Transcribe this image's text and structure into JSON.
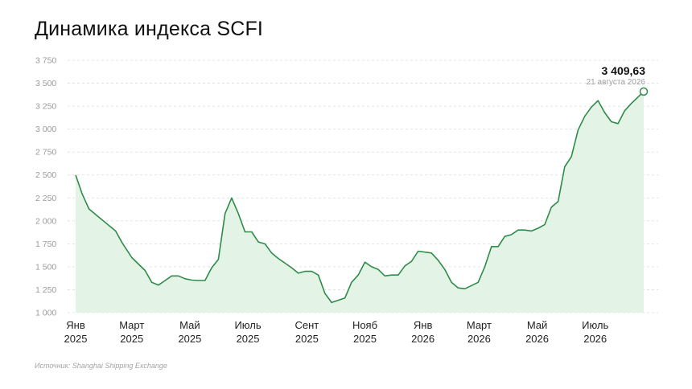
{
  "chart_data": {
    "type": "area",
    "title": "Динамика индекса SCFI",
    "source": "Источник: Shanghai Shipping Exchange",
    "xlabel": "",
    "ylabel": "",
    "ylim": [
      1000,
      3750
    ],
    "yticks": [
      1000,
      1250,
      1500,
      1750,
      2000,
      2250,
      2500,
      2750,
      3000,
      3250,
      3500,
      3750
    ],
    "ytick_labels": [
      "1 000",
      "1 250",
      "1 500",
      "1 750",
      "2 000",
      "2 250",
      "2 500",
      "2 750",
      "3 000",
      "3 250",
      "3 500",
      "3 750"
    ],
    "grid": true,
    "line_color": "#2e8b4a",
    "fill_color": "#e3f4e6",
    "x_ticks": [
      {
        "date": "2025-01-01",
        "line1": "Янв",
        "line2": "2025"
      },
      {
        "date": "2025-03-01",
        "line1": "Март",
        "line2": "2025"
      },
      {
        "date": "2025-05-01",
        "line1": "Май",
        "line2": "2025"
      },
      {
        "date": "2025-07-01",
        "line1": "Июль",
        "line2": "2025"
      },
      {
        "date": "2025-09-01",
        "line1": "Сент",
        "line2": "2025"
      },
      {
        "date": "2025-11-01",
        "line1": "Нояб",
        "line2": "2025"
      },
      {
        "date": "2026-01-01",
        "line1": "Янв",
        "line2": "2026"
      },
      {
        "date": "2026-03-01",
        "line1": "Март",
        "line2": "2026"
      },
      {
        "date": "2026-05-01",
        "line1": "Май",
        "line2": "2026"
      },
      {
        "date": "2026-07-01",
        "line1": "Июль",
        "line2": "2026"
      }
    ],
    "last_point": {
      "label": "3 409,63",
      "date_label": "21 августа 2026"
    },
    "series": [
      {
        "x": [
          "2025-01-01",
          "2025-01-08",
          "2025-01-15",
          "2025-01-29",
          "2025-02-12",
          "2025-02-19",
          "2025-03-01",
          "2025-03-15",
          "2025-03-22",
          "2025-03-29",
          "2025-04-05",
          "2025-04-12",
          "2025-04-19",
          "2025-04-26",
          "2025-05-03",
          "2025-05-10",
          "2025-05-17",
          "2025-05-24",
          "2025-05-31",
          "2025-06-07",
          "2025-06-14",
          "2025-06-21",
          "2025-06-28",
          "2025-07-05",
          "2025-07-12",
          "2025-07-19",
          "2025-07-26",
          "2025-08-02",
          "2025-08-16",
          "2025-08-23",
          "2025-08-30",
          "2025-09-06",
          "2025-09-13",
          "2025-09-20",
          "2025-09-27",
          "2025-10-11",
          "2025-10-18",
          "2025-10-25",
          "2025-11-01",
          "2025-11-08",
          "2025-11-15",
          "2025-11-22",
          "2025-11-29",
          "2025-12-06",
          "2025-12-13",
          "2025-12-20",
          "2025-12-27",
          "2026-01-10",
          "2026-01-17",
          "2026-01-24",
          "2026-01-31",
          "2026-02-07",
          "2026-02-14",
          "2026-02-28",
          "2026-03-07",
          "2026-03-14",
          "2026-03-21",
          "2026-03-28",
          "2026-04-04",
          "2026-04-11",
          "2026-04-18",
          "2026-04-25",
          "2026-05-02",
          "2026-05-09",
          "2026-05-16",
          "2026-05-23",
          "2026-05-30",
          "2026-06-06",
          "2026-06-13",
          "2026-06-20",
          "2026-06-27",
          "2026-07-04",
          "2026-07-11",
          "2026-07-18",
          "2026-07-25",
          "2026-08-01",
          "2026-08-08",
          "2026-08-21"
        ],
        "y": [
          2500,
          2290,
          2130,
          2010,
          1890,
          1760,
          1600,
          1460,
          1330,
          1300,
          1350,
          1400,
          1400,
          1370,
          1355,
          1350,
          1350,
          1490,
          1580,
          2080,
          2250,
          2080,
          1880,
          1880,
          1770,
          1750,
          1650,
          1590,
          1490,
          1430,
          1450,
          1450,
          1410,
          1210,
          1110,
          1160,
          1330,
          1410,
          1550,
          1500,
          1470,
          1400,
          1410,
          1410,
          1510,
          1560,
          1670,
          1650,
          1570,
          1470,
          1330,
          1270,
          1260,
          1330,
          1500,
          1720,
          1720,
          1830,
          1850,
          1900,
          1900,
          1890,
          1920,
          1960,
          2150,
          2210,
          2590,
          2700,
          2990,
          3140,
          3240,
          3310,
          3180,
          3080,
          3060,
          3200,
          3280,
          3409.63
        ]
      }
    ]
  }
}
